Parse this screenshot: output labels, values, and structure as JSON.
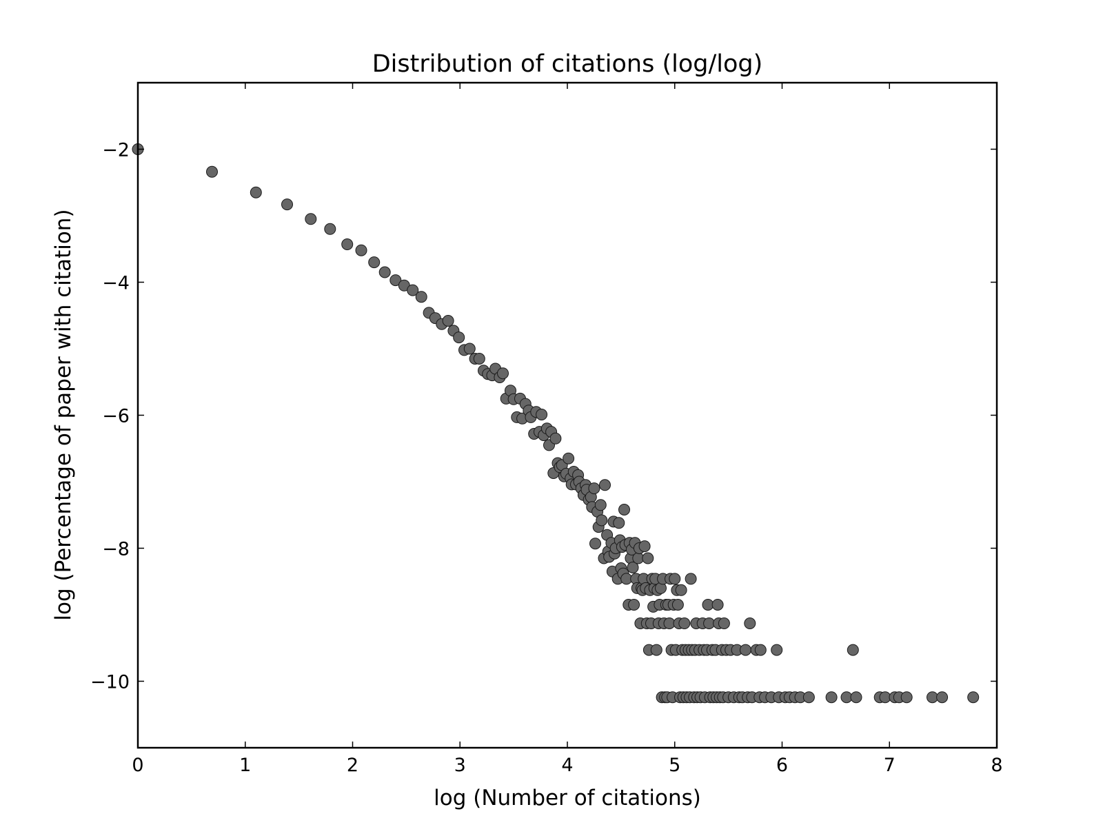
{
  "chart_data": {
    "type": "scatter",
    "title": "Distribution of citations (log/log)",
    "xlabel": "log (Number of citations)",
    "ylabel": "log (Percentage of paper with citation)",
    "xlim": [
      0,
      8
    ],
    "ylim": [
      -11,
      -1
    ],
    "xticks": [
      0,
      1,
      2,
      3,
      4,
      5,
      6,
      7,
      8
    ],
    "yticks": [
      -2,
      -4,
      -6,
      -8,
      -10
    ],
    "xtick_labels": [
      "0",
      "1",
      "2",
      "3",
      "4",
      "5",
      "6",
      "7",
      "8"
    ],
    "ytick_labels": [
      "−2",
      "−4",
      "−6",
      "−8",
      "−10"
    ],
    "grid": false,
    "marker_color": "#666666",
    "marker_edge_color": "#1a1a1a",
    "points": [
      [
        0.0,
        -2.0
      ],
      [
        0.69,
        -2.34
      ],
      [
        1.1,
        -2.65
      ],
      [
        1.39,
        -2.83
      ],
      [
        1.61,
        -3.05
      ],
      [
        1.79,
        -3.2
      ],
      [
        1.95,
        -3.43
      ],
      [
        2.08,
        -3.52
      ],
      [
        2.2,
        -3.7
      ],
      [
        2.3,
        -3.85
      ],
      [
        2.4,
        -3.97
      ],
      [
        2.48,
        -4.05
      ],
      [
        2.56,
        -4.12
      ],
      [
        2.64,
        -4.22
      ],
      [
        2.71,
        -4.46
      ],
      [
        2.77,
        -4.54
      ],
      [
        2.83,
        -4.63
      ],
      [
        2.89,
        -4.58
      ],
      [
        2.94,
        -4.73
      ],
      [
        2.99,
        -4.83
      ],
      [
        3.04,
        -5.02
      ],
      [
        3.09,
        -5.0
      ],
      [
        3.14,
        -5.15
      ],
      [
        3.18,
        -5.15
      ],
      [
        3.22,
        -5.33
      ],
      [
        3.26,
        -5.38
      ],
      [
        3.3,
        -5.4
      ],
      [
        3.33,
        -5.3
      ],
      [
        3.37,
        -5.43
      ],
      [
        3.4,
        -5.37
      ],
      [
        3.43,
        -5.75
      ],
      [
        3.47,
        -5.63
      ],
      [
        3.5,
        -5.76
      ],
      [
        3.53,
        -6.03
      ],
      [
        3.56,
        -5.75
      ],
      [
        3.58,
        -6.05
      ],
      [
        3.61,
        -5.83
      ],
      [
        3.64,
        -5.93
      ],
      [
        3.66,
        -6.03
      ],
      [
        3.69,
        -6.28
      ],
      [
        3.71,
        -5.95
      ],
      [
        3.74,
        -6.25
      ],
      [
        3.76,
        -5.99
      ],
      [
        3.78,
        -6.3
      ],
      [
        3.81,
        -6.2
      ],
      [
        3.83,
        -6.45
      ],
      [
        3.85,
        -6.25
      ],
      [
        3.87,
        -6.87
      ],
      [
        3.89,
        -6.35
      ],
      [
        3.91,
        -6.72
      ],
      [
        3.93,
        -6.78
      ],
      [
        3.95,
        -6.75
      ],
      [
        3.97,
        -6.92
      ],
      [
        3.99,
        -6.88
      ],
      [
        4.01,
        -6.65
      ],
      [
        4.03,
        -6.95
      ],
      [
        4.04,
        -7.04
      ],
      [
        4.06,
        -6.85
      ],
      [
        4.08,
        -7.04
      ],
      [
        4.1,
        -6.9
      ],
      [
        4.11,
        -7.0
      ],
      [
        4.13,
        -7.1
      ],
      [
        4.15,
        -7.2
      ],
      [
        4.17,
        -7.05
      ],
      [
        4.18,
        -7.12
      ],
      [
        4.2,
        -7.27
      ],
      [
        4.22,
        -7.23
      ],
      [
        4.23,
        -7.38
      ],
      [
        4.25,
        -7.1
      ],
      [
        4.26,
        -7.93
      ],
      [
        4.28,
        -7.45
      ],
      [
        4.29,
        -7.68
      ],
      [
        4.31,
        -7.35
      ],
      [
        4.32,
        -7.58
      ],
      [
        4.34,
        -8.15
      ],
      [
        4.35,
        -7.05
      ],
      [
        4.37,
        -7.8
      ],
      [
        4.38,
        -8.05
      ],
      [
        4.39,
        -8.13
      ],
      [
        4.41,
        -7.92
      ],
      [
        4.42,
        -8.35
      ],
      [
        4.43,
        -7.6
      ],
      [
        4.44,
        -8.08
      ],
      [
        4.45,
        -8.0
      ],
      [
        4.47,
        -8.46
      ],
      [
        4.48,
        -7.62
      ],
      [
        4.49,
        -7.88
      ],
      [
        4.5,
        -8.3
      ],
      [
        4.51,
        -7.98
      ],
      [
        4.52,
        -8.38
      ],
      [
        4.53,
        -7.42
      ],
      [
        4.54,
        -7.95
      ],
      [
        4.55,
        -8.46
      ],
      [
        4.57,
        -8.85
      ],
      [
        4.58,
        -7.92
      ],
      [
        4.59,
        -8.15
      ],
      [
        4.6,
        -8.02
      ],
      [
        4.61,
        -8.29
      ],
      [
        4.62,
        -8.85
      ],
      [
        4.63,
        -7.92
      ],
      [
        4.64,
        -8.46
      ],
      [
        4.65,
        -8.6
      ],
      [
        4.66,
        -8.15
      ],
      [
        4.67,
        -8.0
      ],
      [
        4.68,
        -9.13
      ],
      [
        4.69,
        -8.6
      ],
      [
        4.7,
        -8.63
      ],
      [
        4.71,
        -8.46
      ],
      [
        4.72,
        -7.97
      ],
      [
        4.73,
        -8.6
      ],
      [
        4.74,
        -9.13
      ],
      [
        4.75,
        -8.15
      ],
      [
        4.76,
        -9.53
      ],
      [
        4.77,
        -8.63
      ],
      [
        4.78,
        -9.13
      ],
      [
        4.79,
        -8.46
      ],
      [
        4.8,
        -8.88
      ],
      [
        4.81,
        -8.6
      ],
      [
        4.82,
        -8.46
      ],
      [
        4.83,
        -9.53
      ],
      [
        4.84,
        -8.63
      ],
      [
        4.85,
        -9.13
      ],
      [
        4.86,
        -8.85
      ],
      [
        4.87,
        -8.6
      ],
      [
        4.88,
        -10.24
      ],
      [
        4.89,
        -8.46
      ],
      [
        4.9,
        -9.13
      ],
      [
        4.91,
        -10.24
      ],
      [
        4.92,
        -8.85
      ],
      [
        4.93,
        -10.24
      ],
      [
        4.94,
        -8.85
      ],
      [
        4.95,
        -9.13
      ],
      [
        4.96,
        -8.46
      ],
      [
        4.97,
        -9.53
      ],
      [
        4.98,
        -10.24
      ],
      [
        4.99,
        -8.85
      ],
      [
        5.0,
        -8.46
      ],
      [
        5.01,
        -9.53
      ],
      [
        5.02,
        -8.63
      ],
      [
        5.03,
        -8.85
      ],
      [
        5.04,
        -9.13
      ],
      [
        5.05,
        -10.24
      ],
      [
        5.06,
        -8.63
      ],
      [
        5.07,
        -9.53
      ],
      [
        5.08,
        -10.24
      ],
      [
        5.09,
        -9.13
      ],
      [
        5.1,
        -9.53
      ],
      [
        5.11,
        -10.24
      ],
      [
        5.13,
        -9.53
      ],
      [
        5.14,
        -10.24
      ],
      [
        5.15,
        -8.46
      ],
      [
        5.16,
        -9.53
      ],
      [
        5.18,
        -10.24
      ],
      [
        5.19,
        -9.53
      ],
      [
        5.2,
        -9.13
      ],
      [
        5.21,
        -10.24
      ],
      [
        5.23,
        -9.53
      ],
      [
        5.24,
        -10.24
      ],
      [
        5.26,
        -9.13
      ],
      [
        5.27,
        -9.53
      ],
      [
        5.28,
        -10.24
      ],
      [
        5.3,
        -9.53
      ],
      [
        5.31,
        -8.85
      ],
      [
        5.32,
        -9.13
      ],
      [
        5.33,
        -10.24
      ],
      [
        5.35,
        -9.53
      ],
      [
        5.36,
        -10.24
      ],
      [
        5.38,
        -9.53
      ],
      [
        5.39,
        -10.24
      ],
      [
        5.4,
        -8.85
      ],
      [
        5.41,
        -9.13
      ],
      [
        5.42,
        -10.24
      ],
      [
        5.44,
        -9.53
      ],
      [
        5.45,
        -10.24
      ],
      [
        5.46,
        -9.13
      ],
      [
        5.48,
        -9.53
      ],
      [
        5.5,
        -10.24
      ],
      [
        5.52,
        -9.53
      ],
      [
        5.55,
        -10.24
      ],
      [
        5.58,
        -9.53
      ],
      [
        5.6,
        -10.24
      ],
      [
        5.63,
        -10.24
      ],
      [
        5.66,
        -9.53
      ],
      [
        5.68,
        -10.24
      ],
      [
        5.7,
        -9.13
      ],
      [
        5.72,
        -10.24
      ],
      [
        5.76,
        -9.53
      ],
      [
        5.79,
        -10.24
      ],
      [
        5.8,
        -9.53
      ],
      [
        5.84,
        -10.24
      ],
      [
        5.9,
        -10.24
      ],
      [
        5.95,
        -9.53
      ],
      [
        5.97,
        -10.24
      ],
      [
        6.03,
        -10.24
      ],
      [
        6.07,
        -10.24
      ],
      [
        6.12,
        -10.24
      ],
      [
        6.17,
        -10.24
      ],
      [
        6.25,
        -10.24
      ],
      [
        6.46,
        -10.24
      ],
      [
        6.6,
        -10.24
      ],
      [
        6.66,
        -9.53
      ],
      [
        6.69,
        -10.24
      ],
      [
        6.91,
        -10.24
      ],
      [
        6.96,
        -10.24
      ],
      [
        7.05,
        -10.24
      ],
      [
        7.09,
        -10.24
      ],
      [
        7.16,
        -10.24
      ],
      [
        7.4,
        -10.24
      ],
      [
        7.49,
        -10.24
      ],
      [
        7.78,
        -10.24
      ]
    ]
  }
}
